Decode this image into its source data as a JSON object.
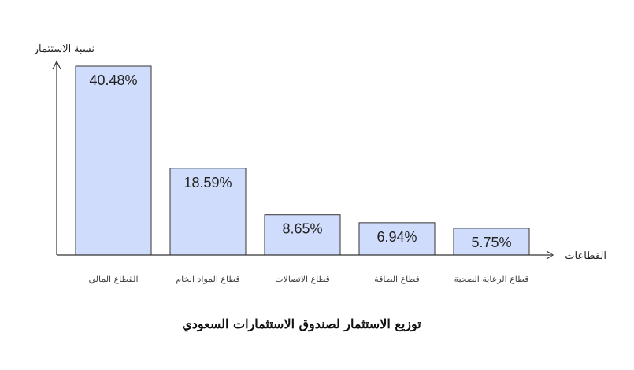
{
  "chart_data": {
    "type": "bar",
    "title": "توزيع الاستثمار لصندوق الاستثمارات  السعودي",
    "xlabel": "القطاعات",
    "ylabel": "نسبة الاستثمار",
    "categories": [
      "القطاع المالي",
      "قطاع المواد الخام",
      "قطاع الاتصالات",
      "قطاع الطاقة",
      "قطاع الرعاية الصحية"
    ],
    "values": [
      40.48,
      18.59,
      8.65,
      6.94,
      5.75
    ],
    "value_labels": [
      "40.48%",
      "18.59%",
      "8.65%",
      "6.94%",
      "5.75%"
    ],
    "unit": "%",
    "ylim": [
      0,
      40.48
    ],
    "grid": false,
    "colors": {
      "bar": "#cfdcfb",
      "edge": "#333333"
    }
  }
}
